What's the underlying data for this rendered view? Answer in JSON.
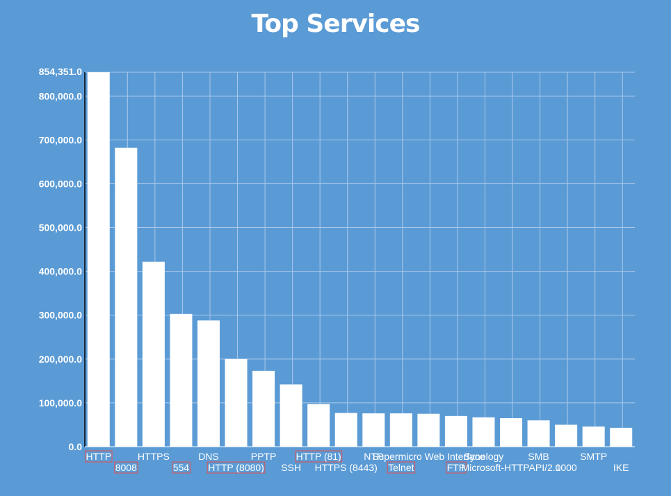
{
  "chart_data": {
    "type": "bar",
    "title": "Top Services",
    "xlabel": "",
    "ylabel": "",
    "ylim": [
      0,
      854351
    ],
    "y_ticks": [
      "0.0",
      "100,000.0",
      "200,000.0",
      "300,000.0",
      "400,000.0",
      "500,000.0",
      "600,000.0",
      "700,000.0",
      "800,000.0"
    ],
    "y_max_label": "854,351.0",
    "grid": true,
    "categories": [
      "HTTP",
      "8008",
      "HTTPS",
      "554",
      "DNS",
      "HTTP (8080)",
      "PPTP",
      "SSH",
      "HTTP (81)",
      "HTTPS (8443)",
      "NTP",
      "Telnet",
      "Supermicro Web Interface",
      "FTP",
      "Synology",
      "Microsoft-HTTPAPI/2.0",
      "SMB",
      "1000",
      "SMTP",
      "IKE"
    ],
    "values": [
      854351,
      682000,
      422000,
      303000,
      288000,
      200000,
      173000,
      142000,
      97000,
      77000,
      76000,
      76000,
      75000,
      70000,
      67000,
      65000,
      60000,
      50000,
      46000,
      43000
    ],
    "boxed_labels": [
      "HTTP",
      "8008",
      "554",
      "HTTP (8080)",
      "HTTP (81)",
      "Telnet",
      "FTP"
    ],
    "colors": {
      "background": "#5b9bd5",
      "bar": "#ffffff",
      "grid": "#a9c8ea",
      "highlight_box": "#e05050"
    }
  }
}
